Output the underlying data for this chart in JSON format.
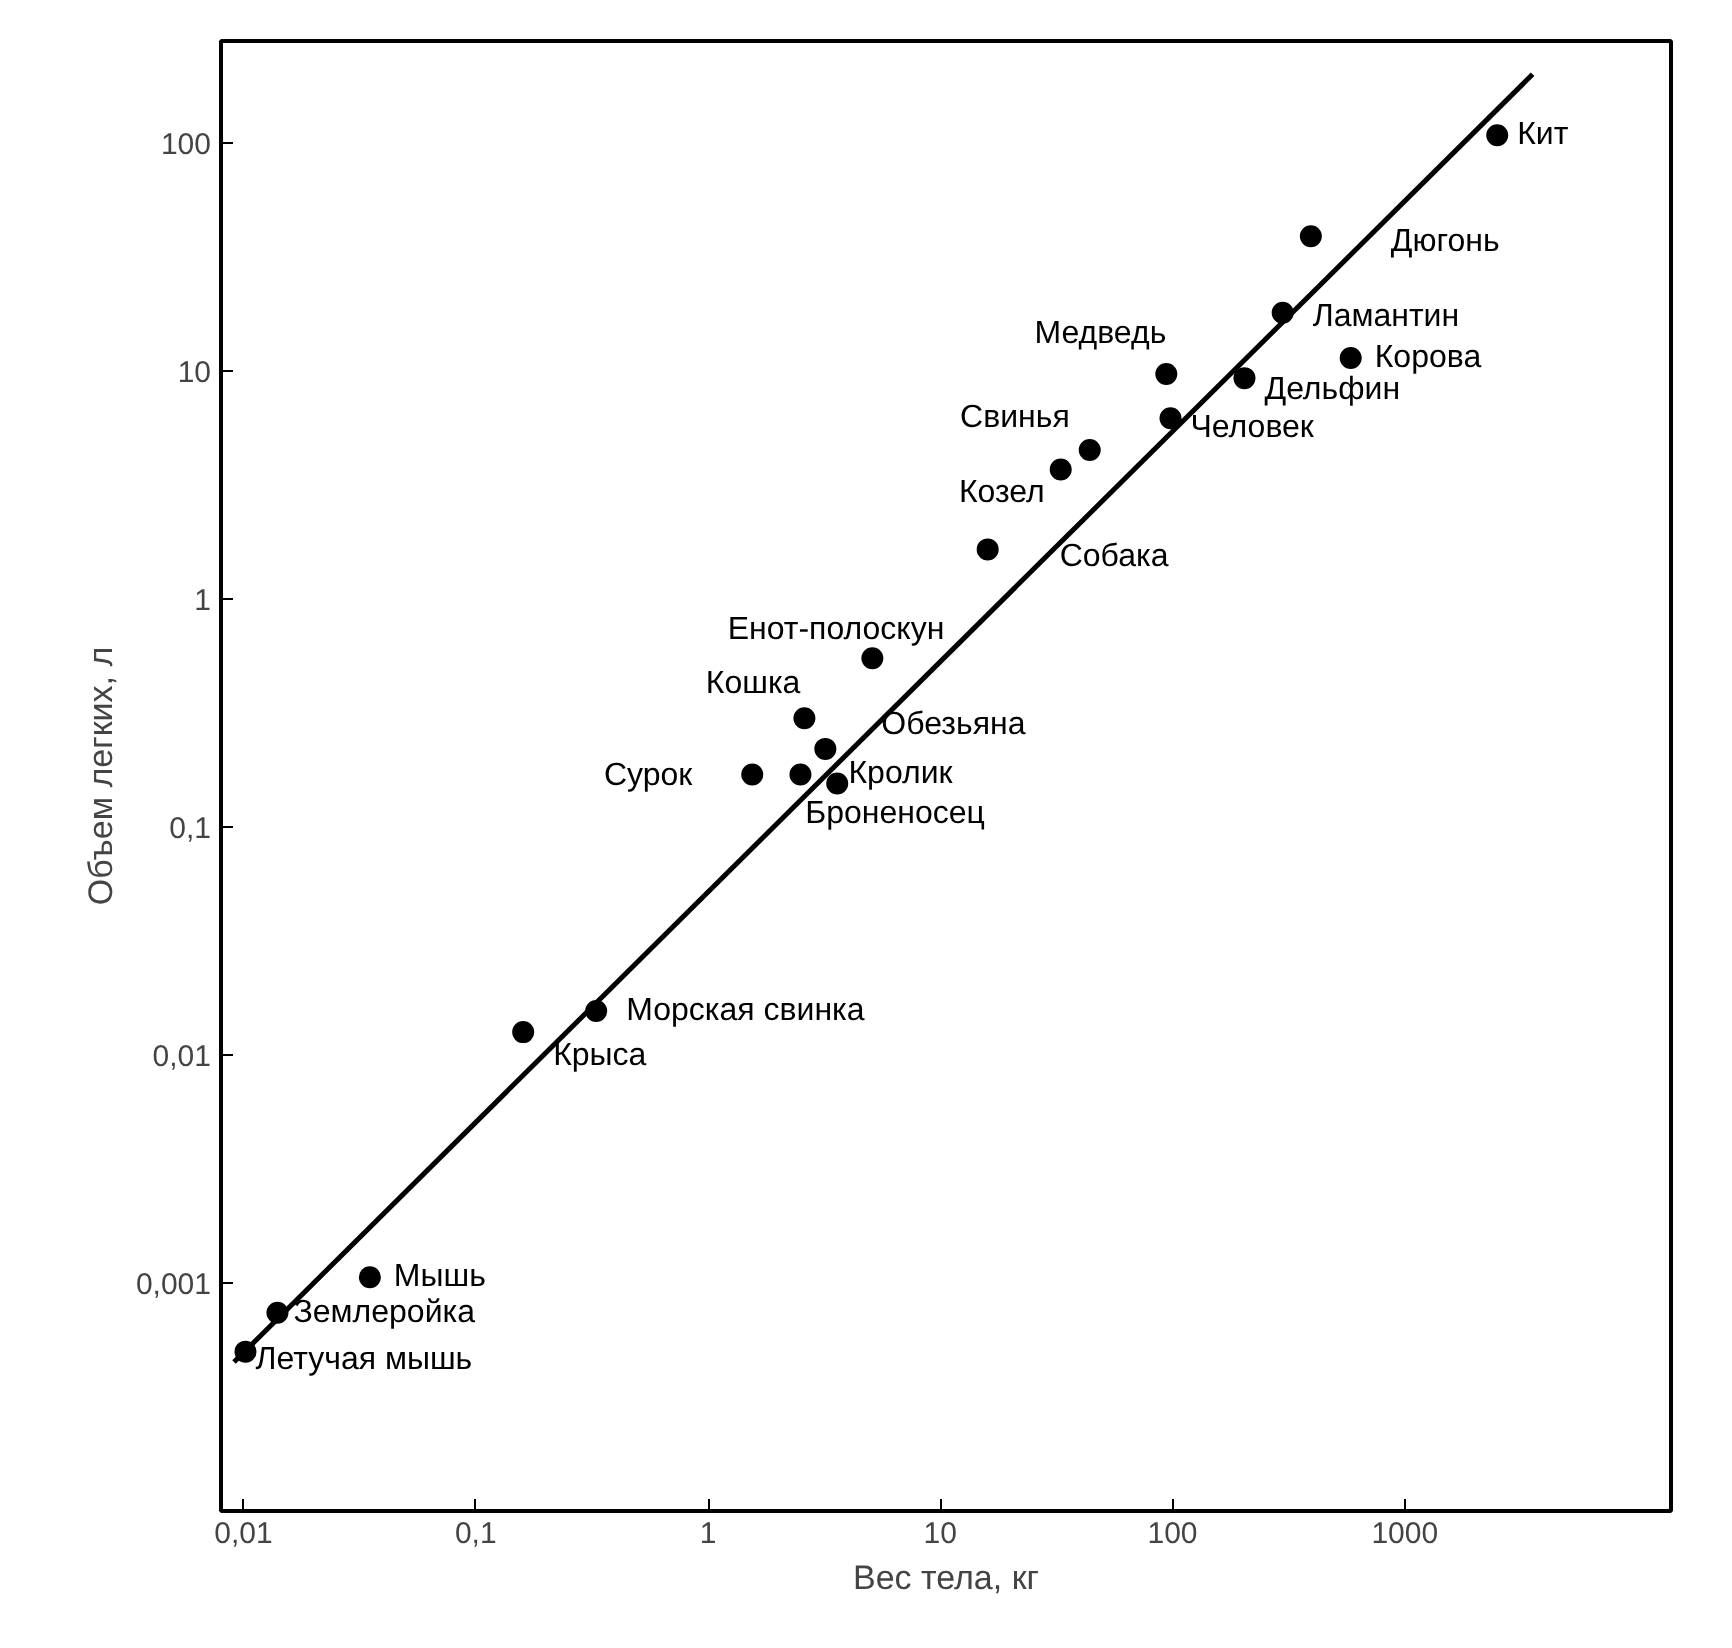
{
  "chart_data": {
    "type": "scatter",
    "xlabel": "Вес тела, кг",
    "ylabel": "Объем легких, л",
    "log": "xy",
    "grid": false,
    "marker": "circle",
    "xlim": [
      0.008,
      14000
    ],
    "ylim": [
      0.0001,
      280
    ],
    "xticks": [
      {
        "value": 0.01,
        "label": "0,01"
      },
      {
        "value": 0.1,
        "label": "0,1"
      },
      1,
      10,
      100,
      1000
    ],
    "yticks": [
      {
        "value": 0.001,
        "label": "0,001"
      },
      {
        "value": 0.01,
        "label": "0,01"
      },
      {
        "value": 0.1,
        "label": "0,1"
      },
      1,
      10,
      100
    ],
    "series": [
      {
        "color": "#000000",
        "x": [
          2500,
          394,
          298,
          585,
          94,
          204,
          98,
          44,
          33,
          16,
          5.1,
          2.6,
          3.2,
          1.55,
          2.5,
          3.6,
          0.33,
          0.16,
          0.035,
          0.014,
          0.0102
        ],
        "values": [
          108,
          39,
          18,
          11.4,
          9.7,
          9.3,
          6.2,
          4.5,
          3.7,
          1.65,
          0.55,
          0.3,
          0.22,
          0.17,
          0.17,
          0.155,
          0.0156,
          0.0126,
          0.00106,
          0.00074,
          0.0005
        ]
      },
      {
        "type": "line",
        "color": "#000000",
        "x": [
          0.0091,
          3550
        ],
        "values": [
          0.00045,
          200
        ],
        "line_style": "solid",
        "marker": "none"
      }
    ],
    "annotations": [
      {
        "text": "Кит",
        "x": 2500,
        "y": 108
      },
      {
        "text": "Дюгонь",
        "x": 394,
        "y": 39
      },
      {
        "text": "Ламантин",
        "x": 298,
        "y": 18
      },
      {
        "text": "Корова",
        "x": 585,
        "y": 11.4
      },
      {
        "text": "Медведь",
        "x": 94,
        "y": 9.7
      },
      {
        "text": "Дельфин",
        "x": 204,
        "y": 9.3
      },
      {
        "text": "Человек",
        "x": 98,
        "y": 6.2
      },
      {
        "text": "Свинья",
        "x": 44,
        "y": 4.5
      },
      {
        "text": "Козел",
        "x": 33,
        "y": 3.7
      },
      {
        "text": "Собака",
        "x": 16,
        "y": 1.65
      },
      {
        "text": "Енот-полоскун",
        "x": 5.1,
        "y": 0.55
      },
      {
        "text": "Кошка",
        "x": 2.6,
        "y": 0.3
      },
      {
        "text": "Обезьяна",
        "x": 3.2,
        "y": 0.22
      },
      {
        "text": "Сурок",
        "x": 1.55,
        "y": 0.17
      },
      {
        "text": "Кролик",
        "x": 2.5,
        "y": 0.17
      },
      {
        "text": "Броненосец",
        "x": 3.6,
        "y": 0.155
      },
      {
        "text": "Морская свинка",
        "x": 0.33,
        "y": 0.0156
      },
      {
        "text": "Крыса",
        "x": 0.16,
        "y": 0.0126
      },
      {
        "text": "Мышь",
        "x": 0.035,
        "y": 0.00106
      },
      {
        "text": "Землеройка",
        "x": 0.014,
        "y": 0.00074
      },
      {
        "text": "Летучая мышь",
        "x": 0.0102,
        "y": 0.0005
      }
    ]
  }
}
